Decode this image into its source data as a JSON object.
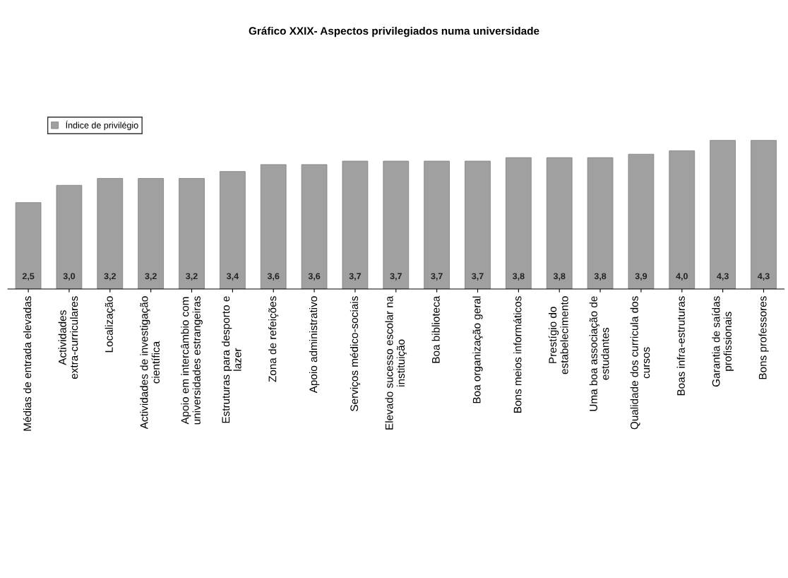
{
  "chart_data": {
    "type": "bar",
    "title": "Gráfico XXIX- Aspectos privilegiados numa universidade",
    "categories": [
      "Médias de entrada elevadas",
      "Actividades extra-curriculares",
      "Localização",
      "Actividades de investigação científica",
      "Apoio em intercâmbio com universidades estrangeiras",
      "Estruturas para desporto e lazer",
      "Zona de refeições",
      "Apoio administrativo",
      "Serviços médico-sociais",
      "Elevado sucesso escolar na instituição",
      "Boa biblioteca",
      "Boa organização geral",
      "Bons meios informáticos",
      "Prestígio do estabelecimento",
      "Uma boa associação de estudantes",
      "Qualidade dos curricula dos cursos",
      "Boas infra-estruturas",
      "Garantia de saídas profissionais",
      "Bons professores"
    ],
    "series": [
      {
        "name": "Índice de privilégio",
        "color": "#a0a0a0",
        "values": [
          2.5,
          3.0,
          3.2,
          3.2,
          3.2,
          3.4,
          3.6,
          3.6,
          3.7,
          3.7,
          3.7,
          3.7,
          3.8,
          3.8,
          3.8,
          3.9,
          4.0,
          4.3,
          4.3
        ],
        "value_labels": [
          "2,5",
          "3,0",
          "3,2",
          "3,2",
          "3,2",
          "3,4",
          "3,6",
          "3,6",
          "3,7",
          "3,7",
          "3,7",
          "3,7",
          "3,8",
          "3,8",
          "3,8",
          "3,9",
          "4,0",
          "4,3",
          "4,3"
        ]
      }
    ],
    "legend": "top left",
    "grid": false
  }
}
